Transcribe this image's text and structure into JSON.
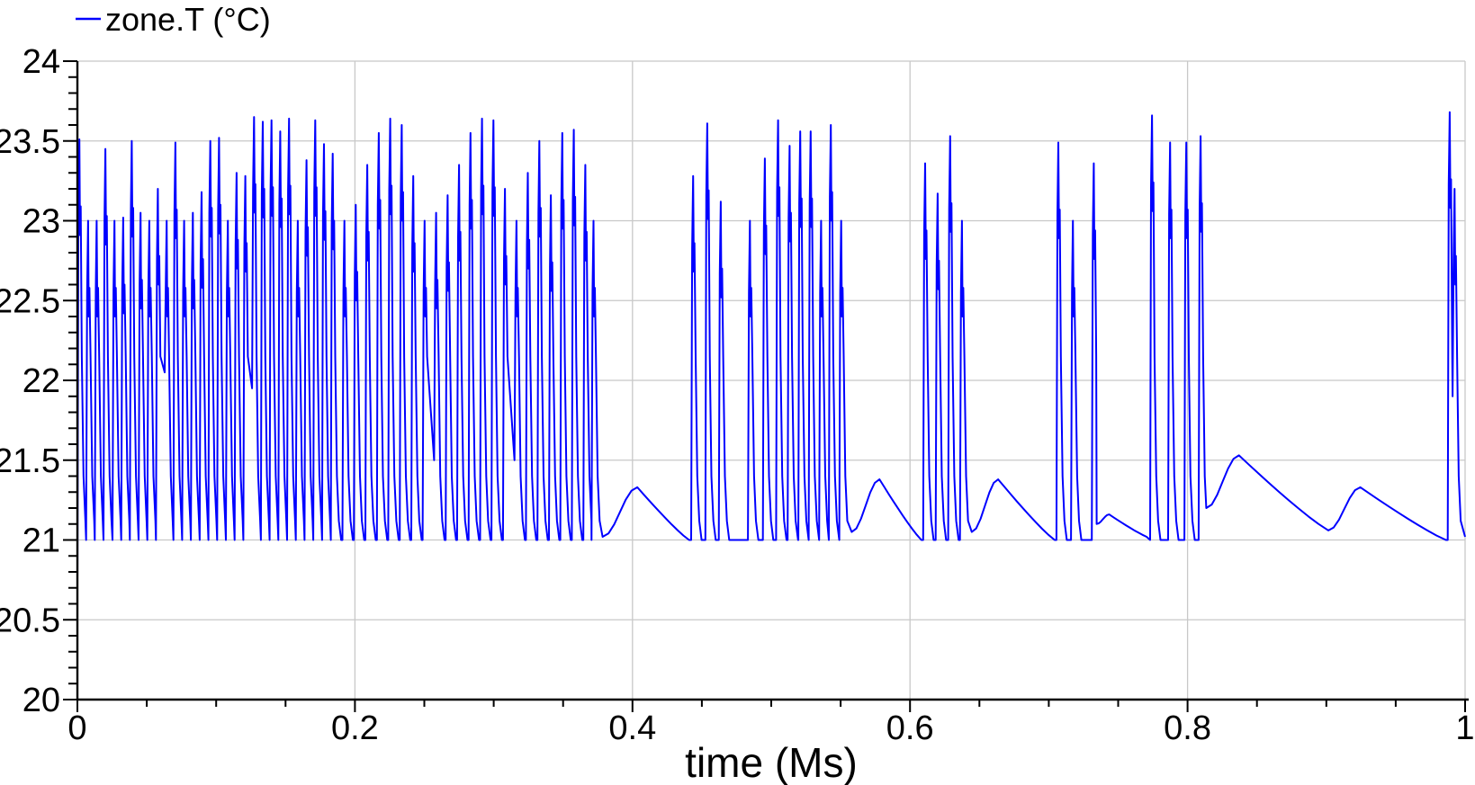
{
  "chart_data": {
    "type": "line",
    "title": "",
    "legend": "zone.T (°C)",
    "xlabel": "time (Ms)",
    "ylabel": "",
    "xlim": [
      0,
      1
    ],
    "ylim": [
      20,
      24
    ],
    "x_major_ticks": [
      0,
      0.2,
      0.4,
      0.6,
      0.8,
      1
    ],
    "x_tick_labels": [
      "0",
      "0.2",
      "0.4",
      "0.6",
      "0.8",
      "1"
    ],
    "x_minor_step": 0.05,
    "y_major_ticks": [
      20,
      20.5,
      21,
      21.5,
      22,
      22.5,
      23,
      23.5,
      24
    ],
    "y_tick_labels": [
      "20",
      "20.5",
      "21",
      "21.5",
      "22",
      "22.5",
      "23",
      "23.5",
      "24"
    ],
    "y_minor_step": 0.1,
    "grid": "major",
    "legend_position": "top-left",
    "colors": {
      "line": "#0000ff",
      "grid": "#c8c8c8",
      "axis": "#000000",
      "text": "#000000",
      "background": "#ffffff"
    },
    "baseline": 21.0,
    "initial_point": [
      0,
      20.75
    ],
    "series": [
      {
        "name": "zone.T (°C)",
        "color": "#0000ff",
        "end_point": [
          1.0,
          21.02
        ],
        "spikes": [
          [
            0.0,
            23.51
          ],
          [
            0.0063,
            23.0
          ],
          [
            0.0125,
            23.0
          ],
          [
            0.0188,
            23.45
          ],
          [
            0.0253,
            23.0
          ],
          [
            0.0316,
            23.02
          ],
          [
            0.0378,
            23.5
          ],
          [
            0.0441,
            23.05
          ],
          [
            0.0504,
            23.0
          ],
          [
            0.0566,
            23.2
          ],
          [
            0.0629,
            23.0,
            22.05
          ],
          [
            0.0692,
            23.49
          ],
          [
            0.0755,
            23.0
          ],
          [
            0.0818,
            23.05
          ],
          [
            0.0881,
            23.18
          ],
          [
            0.0944,
            23.5
          ],
          [
            0.1007,
            23.52
          ],
          [
            0.107,
            23.0
          ],
          [
            0.1133,
            23.3
          ],
          [
            0.1196,
            23.28
          ],
          [
            0.1259,
            23.65,
            21.95
          ],
          [
            0.1322,
            23.62
          ],
          [
            0.1385,
            23.63
          ],
          [
            0.1448,
            23.56
          ],
          [
            0.1511,
            23.64
          ],
          [
            0.1574,
            23.0
          ],
          [
            0.1637,
            23.38
          ],
          [
            0.17,
            23.63
          ],
          [
            0.1763,
            23.48
          ],
          [
            0.1826,
            23.42
          ],
          [
            0.191,
            23.0
          ],
          [
            0.1992,
            23.1
          ],
          [
            0.2075,
            23.35
          ],
          [
            0.2158,
            23.55
          ],
          [
            0.224,
            23.64
          ],
          [
            0.2323,
            23.6
          ],
          [
            0.2406,
            23.28
          ],
          [
            0.2488,
            23.0
          ],
          [
            0.2571,
            23.05,
            21.5
          ],
          [
            0.2654,
            23.16
          ],
          [
            0.2736,
            23.35
          ],
          [
            0.2819,
            23.55
          ],
          [
            0.2902,
            23.64
          ],
          [
            0.2984,
            23.63
          ],
          [
            0.3067,
            23.2
          ],
          [
            0.315,
            23.0,
            21.5
          ],
          [
            0.3232,
            23.3
          ],
          [
            0.3315,
            23.5
          ],
          [
            0.3398,
            23.16
          ],
          [
            0.348,
            23.55
          ],
          [
            0.3563,
            23.57
          ],
          [
            0.3646,
            23.35
          ],
          [
            0.3705,
            23.0
          ],
          [
            0.4423,
            23.28
          ],
          [
            0.4525,
            23.61
          ],
          [
            0.4622,
            23.12
          ],
          [
            0.4832,
            23.0
          ],
          [
            0.494,
            23.39
          ],
          [
            0.5035,
            23.63
          ],
          [
            0.5118,
            23.47
          ],
          [
            0.5195,
            23.56
          ],
          [
            0.527,
            23.56
          ],
          [
            0.5345,
            23.0
          ],
          [
            0.5415,
            23.6
          ],
          [
            0.549,
            23.0
          ],
          [
            0.6095,
            23.36
          ],
          [
            0.6185,
            23.17
          ],
          [
            0.6275,
            23.53
          ],
          [
            0.636,
            23.0
          ],
          [
            0.7055,
            23.49
          ],
          [
            0.716,
            23.0
          ],
          [
            0.731,
            23.36
          ],
          [
            0.773,
            23.66
          ],
          [
            0.786,
            23.49
          ],
          [
            0.7977,
            23.49
          ],
          [
            0.808,
            23.53
          ],
          [
            0.9875,
            23.68
          ],
          [
            0.991,
            23.2,
            21.9
          ]
        ],
        "humps": [
          [
            0.3785,
            21.02,
            0.4035,
            21.33,
            0.4408,
            21.0
          ],
          [
            0.558,
            21.05,
            0.578,
            21.38,
            0.6082,
            21.0
          ],
          [
            0.6445,
            21.05,
            0.6635,
            21.38,
            0.7042,
            21.0
          ],
          [
            0.7345,
            21.1,
            0.7435,
            21.16,
            0.7705,
            21.02
          ],
          [
            0.8135,
            21.2,
            0.837,
            21.53,
            0.9015,
            21.06
          ],
          [
            0.9015,
            21.06,
            0.9245,
            21.33,
            0.9862,
            21.0
          ]
        ]
      }
    ]
  }
}
